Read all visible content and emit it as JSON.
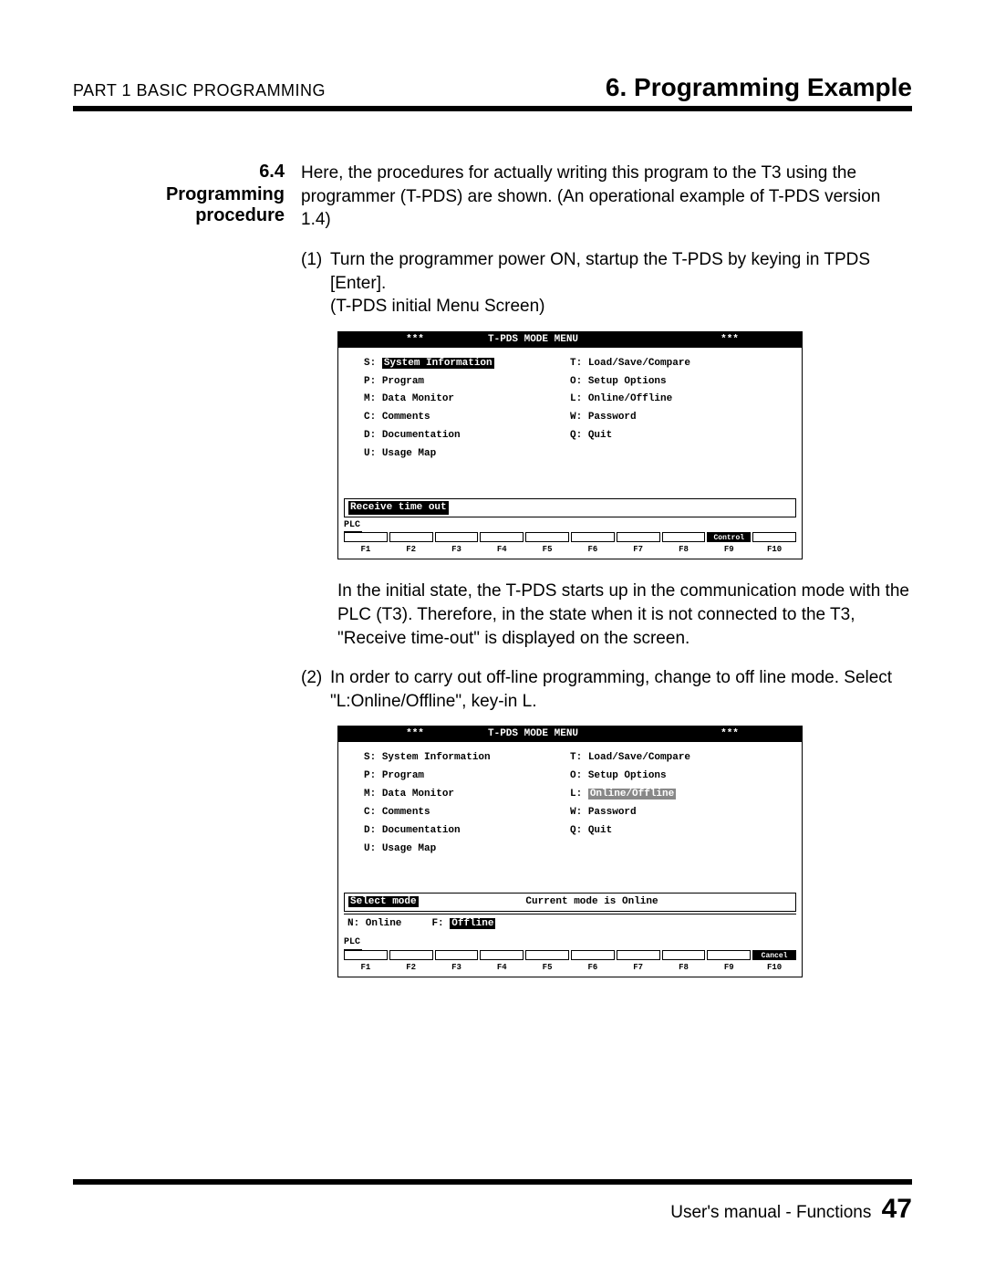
{
  "header": {
    "left": "PART 1  BASIC  PROGRAMMING",
    "right": "6. Programming Example"
  },
  "section": {
    "number": "6.4",
    "title": "Programming procedure"
  },
  "intro": "Here, the procedures for actually writing this program to the T3 using the programmer (T-PDS) are shown.  (An operational example of T-PDS version 1.4)",
  "step1": {
    "num": "(1)",
    "line1": "Turn the programmer power ON, startup the T-PDS by keying in TPDS [Enter].",
    "line2": "(T-PDS initial Menu Screen)"
  },
  "screen1": {
    "title_left": "***",
    "title_center": "T-PDS MODE MENU",
    "title_right": "***",
    "left_items": [
      {
        "k": "S:",
        "v": "System Information",
        "hl": true
      },
      {
        "k": "P:",
        "v": "Program"
      },
      {
        "k": "M:",
        "v": "Data Monitor"
      },
      {
        "k": "C:",
        "v": "Comments"
      },
      {
        "k": "D:",
        "v": "Documentation"
      },
      {
        "k": "U:",
        "v": "Usage Map"
      }
    ],
    "right_items": [
      {
        "k": "T:",
        "v": "Load/Save/Compare"
      },
      {
        "k": "O:",
        "v": "Setup Options"
      },
      {
        "k": "L:",
        "v": "Online/Offline"
      },
      {
        "k": "W:",
        "v": "Password"
      },
      {
        "k": "Q:",
        "v": "Quit"
      }
    ],
    "msg": "Receive time out",
    "plc": "PLC",
    "fbtn": "Control",
    "fkeys": [
      "F1",
      "F2",
      "F3",
      "F4",
      "F5",
      "F6",
      "F7",
      "F8",
      "F9",
      "F10"
    ]
  },
  "para2": "In the initial state, the T-PDS starts up in the communication mode with the PLC (T3).  Therefore, in the state when it is not connected to the T3, \"Receive time-out\" is displayed on the screen.",
  "step2": {
    "num": "(2)",
    "line1": "In order to carry out off-line programming, change to off line mode. Select \"L:Online/Offline\", key-in L."
  },
  "screen2": {
    "title_left": "***",
    "title_center": "T-PDS MODE MENU",
    "title_right": "***",
    "left_items": [
      {
        "k": "S:",
        "v": "System Information"
      },
      {
        "k": "P:",
        "v": "Program"
      },
      {
        "k": "M:",
        "v": "Data Monitor"
      },
      {
        "k": "C:",
        "v": "Comments"
      },
      {
        "k": "D:",
        "v": "Documentation"
      },
      {
        "k": "U:",
        "v": "Usage Map"
      }
    ],
    "right_items": [
      {
        "k": "T:",
        "v": "Load/Save/Compare"
      },
      {
        "k": "O:",
        "v": "Setup Options"
      },
      {
        "k": "L:",
        "v": "Online/Offline",
        "hl": "grey"
      },
      {
        "k": "W:",
        "v": "Password"
      },
      {
        "k": "Q:",
        "v": "Quit"
      }
    ],
    "msg_left": "Select mode",
    "msg_right": "Current mode is Online",
    "mode_n": "N: Online",
    "mode_f_k": "F:",
    "mode_f_v": "Offline",
    "plc": "PLC",
    "fbtn": "Cancel",
    "fkeys": [
      "F1",
      "F2",
      "F3",
      "F4",
      "F5",
      "F6",
      "F7",
      "F8",
      "F9",
      "F10"
    ]
  },
  "footer": {
    "text": "User's manual - Functions",
    "page": "47"
  }
}
